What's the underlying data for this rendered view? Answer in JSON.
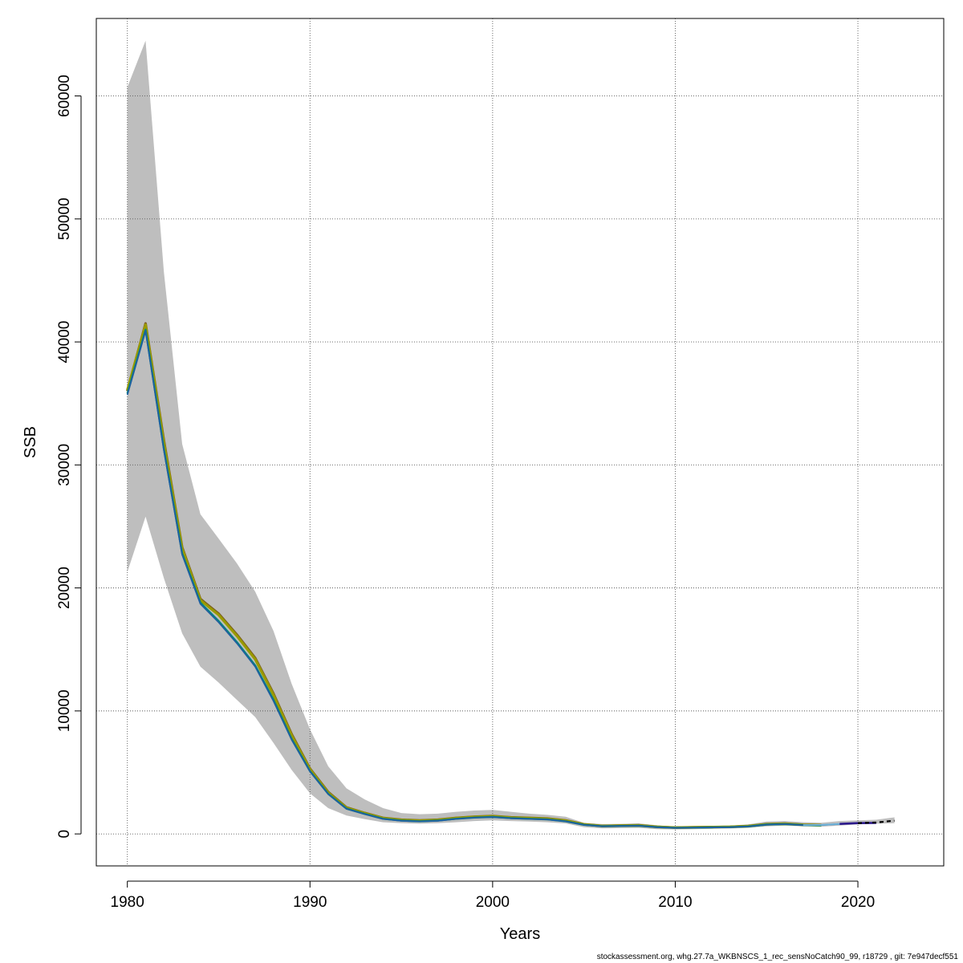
{
  "chart_data": {
    "type": "line",
    "title": "",
    "xlabel": "Years",
    "ylabel": "SSB",
    "xlim": [
      1978.3,
      2024.7
    ],
    "ylim": [
      -2600,
      66300
    ],
    "x_ticks": [
      1980,
      1990,
      2000,
      2010,
      2020
    ],
    "y_ticks": [
      0,
      10000,
      20000,
      30000,
      40000,
      50000,
      60000
    ],
    "grid": true,
    "legend": "none",
    "band": {
      "color": "#bebebe",
      "x": [
        1980,
        1981,
        1982,
        1983,
        1984,
        1985,
        1986,
        1987,
        1988,
        1989,
        1990,
        1991,
        1992,
        1993,
        1994,
        1995,
        1996,
        1997,
        1998,
        1999,
        2000,
        2001,
        2002,
        2003,
        2004,
        2005,
        2006,
        2007,
        2008,
        2009,
        2010,
        2011,
        2012,
        2013,
        2014,
        2015,
        2016,
        2017,
        2018,
        2019,
        2020,
        2021,
        2022
      ],
      "lower": [
        21300,
        25800,
        20800,
        16300,
        13600,
        12300,
        10900,
        9500,
        7400,
        5200,
        3300,
        2100,
        1500,
        1200,
        950,
        870,
        830,
        870,
        950,
        1050,
        1100,
        1050,
        1000,
        950,
        850,
        550,
        450,
        470,
        490,
        390,
        370,
        390,
        420,
        440,
        490,
        610,
        680,
        610,
        590,
        680,
        780,
        830,
        880
      ],
      "upper": [
        60700,
        64500,
        45700,
        31700,
        26000,
        24000,
        22000,
        19700,
        16500,
        12200,
        8500,
        5500,
        3700,
        2800,
        2100,
        1700,
        1600,
        1650,
        1800,
        1900,
        1950,
        1800,
        1650,
        1550,
        1400,
        900,
        800,
        820,
        860,
        700,
        600,
        620,
        650,
        680,
        770,
        1000,
        1050,
        950,
        910,
        1050,
        1100,
        1150,
        1350
      ]
    },
    "series": [
      {
        "color": "#7a5c1e",
        "width": 3.2,
        "x": [
          1980,
          1981,
          1982,
          1983,
          1984,
          1985,
          1986,
          1987,
          1988,
          1989,
          1990,
          1991,
          1992,
          1993,
          1994,
          1995,
          1996,
          1997,
          1998,
          1999,
          2000,
          2001,
          2002,
          2003,
          2004,
          2005,
          2006,
          2007,
          2008,
          2009,
          2010,
          2011,
          2012,
          2013,
          2014,
          2015,
          2016,
          2017,
          2018
        ],
        "values": [
          36000,
          41500,
          32000,
          23300,
          19100,
          17900,
          16200,
          14300,
          11400,
          8100,
          5300,
          3400,
          2150,
          1700,
          1300,
          1150,
          1100,
          1150,
          1300,
          1400,
          1450,
          1350,
          1300,
          1250,
          1100,
          780,
          650,
          680,
          700,
          580,
          520,
          540,
          560,
          580,
          640,
          790,
          830,
          750,
          720
        ]
      },
      {
        "color": "#9a9a00",
        "width": 3.2,
        "x": [
          1980,
          1981,
          1982,
          1983,
          1984,
          1985,
          1986,
          1987,
          1988,
          1989,
          1990,
          1991,
          1992,
          1993,
          1994,
          1995,
          1996,
          1997,
          1998,
          1999,
          2000,
          2001,
          2002,
          2003,
          2004,
          2005,
          2006,
          2007,
          2008,
          2009,
          2010,
          2011,
          2012,
          2013,
          2014,
          2015,
          2016,
          2017,
          2018
        ],
        "values": [
          36100,
          41400,
          31800,
          23200,
          19000,
          17800,
          16100,
          14200,
          11300,
          8000,
          5250,
          3350,
          2120,
          1680,
          1280,
          1130,
          1080,
          1130,
          1280,
          1380,
          1430,
          1330,
          1280,
          1230,
          1080,
          770,
          640,
          670,
          690,
          570,
          510,
          530,
          550,
          570,
          630,
          780,
          820,
          740,
          710
        ]
      },
      {
        "color": "#008a7a",
        "width": 2.4,
        "x": [
          1980,
          1981,
          1982,
          1983,
          1984,
          1985,
          1986,
          1987,
          1988,
          1989,
          1990,
          1991,
          1992,
          1993,
          1994,
          1995,
          1996,
          1997,
          1998,
          1999,
          2000,
          2001,
          2002,
          2003,
          2004,
          2005,
          2006,
          2007,
          2008,
          2009,
          2010,
          2011,
          2012,
          2013,
          2014,
          2015,
          2016,
          2017,
          2018
        ],
        "values": [
          35800,
          41000,
          31300,
          22800,
          18800,
          17300,
          15600,
          13700,
          10900,
          7700,
          5100,
          3250,
          2050,
          1620,
          1230,
          1080,
          1030,
          1080,
          1230,
          1330,
          1380,
          1280,
          1230,
          1180,
          1030,
          740,
          620,
          650,
          670,
          550,
          490,
          510,
          530,
          550,
          610,
          760,
          800,
          720,
          700
        ]
      },
      {
        "color": "#1f5f9f",
        "width": 1.8,
        "x": [
          1980,
          1981,
          1982,
          1983,
          1984,
          1985,
          1986,
          1987,
          1988,
          1989,
          1990,
          1991,
          1992,
          1993,
          1994,
          1995,
          1996,
          1997,
          1998,
          1999,
          2000,
          2001,
          2002,
          2003,
          2004,
          2005,
          2006,
          2007,
          2008,
          2009,
          2010,
          2011,
          2012,
          2013,
          2014,
          2015,
          2016,
          2017,
          2018,
          2019
        ],
        "values": [
          35700,
          40900,
          31200,
          22700,
          18700,
          17200,
          15500,
          13600,
          10800,
          7650,
          5080,
          3230,
          2040,
          1610,
          1220,
          1070,
          1020,
          1070,
          1220,
          1320,
          1370,
          1270,
          1220,
          1170,
          1020,
          735,
          615,
          645,
          665,
          545,
          485,
          505,
          525,
          545,
          605,
          755,
          795,
          715,
          720,
          800
        ]
      },
      {
        "color": "#6ab0d8",
        "width": 2.0,
        "x": [
          2017,
          2018,
          2019,
          2020
        ],
        "values": [
          720,
          730,
          810,
          880
        ]
      },
      {
        "color": "#2d1a8c",
        "width": 2.6,
        "x": [
          2019,
          2020,
          2021
        ],
        "values": [
          810,
          880,
          900
        ]
      },
      {
        "color": "#000000",
        "width": 2.2,
        "dash": "5,4",
        "x": [
          2020,
          2021,
          2022
        ],
        "values": [
          880,
          930,
          1080
        ]
      }
    ]
  },
  "footer": "stockassessment.org, whg.27.7a_WKBNSCS_1_rec_sensNoCatch90_99, r18729 , git: 7e947decf551"
}
